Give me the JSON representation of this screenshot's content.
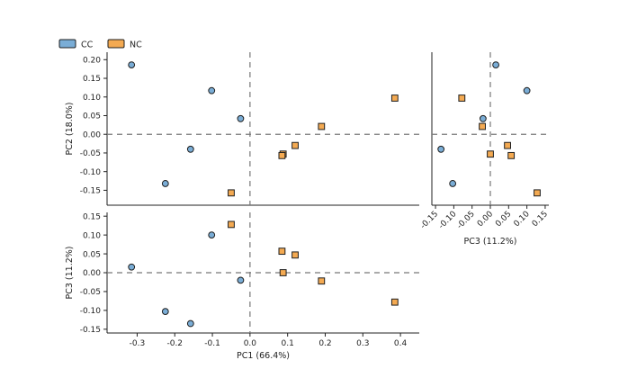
{
  "colors": {
    "CC": "#7aadd6",
    "NC": "#f4aa52"
  },
  "legend": [
    {
      "key": "CC",
      "label": "CC"
    },
    {
      "key": "NC",
      "label": "NC"
    }
  ],
  "chart_data": [
    {
      "id": "pc1_pc2",
      "type": "scatter",
      "xlabel": "",
      "ylabel": "PC2 (18.0%)",
      "xlim": [
        -0.38,
        0.45
      ],
      "ylim": [
        -0.19,
        0.22
      ],
      "xticks": [],
      "yticks": [
        "0.20",
        "0.15",
        "0.10",
        "0.05",
        "0.00",
        "-0.05",
        "-0.10",
        "-0.15"
      ],
      "reference_lines": {
        "x": 0,
        "y": 0
      },
      "series": [
        {
          "name": "CC",
          "points": [
            [
              -0.315,
              0.186
            ],
            [
              -0.102,
              0.117
            ],
            [
              -0.025,
              0.042
            ],
            [
              -0.158,
              -0.04
            ],
            [
              -0.225,
              -0.132
            ]
          ]
        },
        {
          "name": "NC",
          "points": [
            [
              0.385,
              0.097
            ],
            [
              0.19,
              0.021
            ],
            [
              0.12,
              -0.03
            ],
            [
              0.088,
              -0.053
            ],
            [
              0.085,
              -0.057
            ],
            [
              -0.05,
              -0.157
            ]
          ]
        }
      ]
    },
    {
      "id": "pc3_pc2",
      "type": "scatter",
      "xlabel": "PC3 (11.2%)",
      "ylabel": "",
      "xlim": [
        -0.16,
        0.16
      ],
      "ylim": [
        -0.19,
        0.22
      ],
      "xticks": [
        "-0.15",
        "-0.10",
        "-0.05",
        "0.00",
        "0.05",
        "0.10",
        "0.15"
      ],
      "yticks": [],
      "reference_lines": {
        "x": 0,
        "y": 0
      },
      "series": [
        {
          "name": "CC",
          "points": [
            [
              0.015,
              0.186
            ],
            [
              0.1,
              0.117
            ],
            [
              -0.02,
              0.042
            ],
            [
              -0.135,
              -0.04
            ],
            [
              -0.103,
              -0.132
            ]
          ]
        },
        {
          "name": "NC",
          "points": [
            [
              -0.078,
              0.097
            ],
            [
              -0.022,
              0.021
            ],
            [
              0.047,
              -0.03
            ],
            [
              0.0,
              -0.053
            ],
            [
              0.057,
              -0.057
            ],
            [
              0.128,
              -0.157
            ]
          ]
        }
      ]
    },
    {
      "id": "pc1_pc3",
      "type": "scatter",
      "xlabel": "PC1 (66.4%)",
      "ylabel": "PC3 (11.2%)",
      "xlim": [
        -0.38,
        0.45
      ],
      "ylim": [
        -0.16,
        0.16
      ],
      "xticks": [
        "-0.3",
        "-0.2",
        "-0.1",
        "0.0",
        "0.1",
        "0.2",
        "0.3",
        "0.4"
      ],
      "yticks": [
        "0.15",
        "0.10",
        "0.05",
        "0.00",
        "-0.05",
        "-0.10",
        "-0.15"
      ],
      "reference_lines": {
        "x": 0,
        "y": 0
      },
      "series": [
        {
          "name": "CC",
          "points": [
            [
              -0.315,
              0.015
            ],
            [
              -0.102,
              0.1
            ],
            [
              -0.025,
              -0.02
            ],
            [
              -0.158,
              -0.135
            ],
            [
              -0.225,
              -0.103
            ]
          ]
        },
        {
          "name": "NC",
          "points": [
            [
              -0.05,
              0.128
            ],
            [
              0.085,
              0.057
            ],
            [
              0.12,
              0.047
            ],
            [
              0.088,
              0.0
            ],
            [
              0.19,
              -0.022
            ],
            [
              0.385,
              -0.078
            ]
          ]
        }
      ]
    }
  ]
}
